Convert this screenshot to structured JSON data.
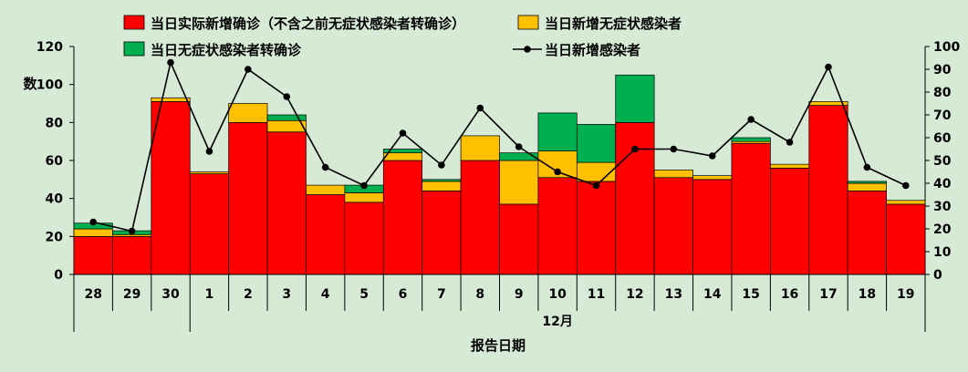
{
  "chart_data": {
    "type": "bar",
    "stacked": true,
    "categories": [
      "28",
      "29",
      "30",
      "1",
      "2",
      "3",
      "4",
      "5",
      "6",
      "7",
      "8",
      "9",
      "10",
      "11",
      "12",
      "13",
      "14",
      "15",
      "16",
      "17",
      "18",
      "19"
    ],
    "month_groups": [
      {
        "label": "",
        "start": 0,
        "end": 2
      },
      {
        "label": "12月",
        "start": 3,
        "end": 21
      }
    ],
    "xlabel": "报告日期",
    "ylabel": "数",
    "ylim": [
      0,
      120
    ],
    "yticks": [
      0,
      20,
      40,
      60,
      80,
      100,
      120
    ],
    "y2lim": [
      0,
      100
    ],
    "y2ticks": [
      0,
      10,
      20,
      30,
      40,
      50,
      60,
      70,
      80,
      90,
      100
    ],
    "grid": false,
    "legend_position": "top",
    "series": [
      {
        "name": "当日实际新增确诊（不含之前无症状感染者转确诊）",
        "kind": "bar",
        "axis": "left",
        "color": "#ff0000",
        "values": [
          20,
          20,
          91,
          53,
          80,
          75,
          42,
          38,
          60,
          44,
          60,
          37,
          51,
          49,
          80,
          51,
          50,
          69,
          56,
          89,
          44,
          37
        ]
      },
      {
        "name": "当日新增无症状感染者",
        "kind": "bar",
        "axis": "left",
        "color": "#ffc000",
        "values": [
          4,
          1,
          2,
          1,
          10,
          6,
          5,
          5,
          4,
          5,
          13,
          23,
          14,
          10,
          0,
          4,
          2,
          1,
          2,
          2,
          4,
          2
        ]
      },
      {
        "name": "当日无症状感染者转确诊",
        "kind": "bar",
        "axis": "left",
        "color": "#00b050",
        "values": [
          3,
          2,
          0,
          0,
          0,
          3,
          0,
          4,
          2,
          1,
          0,
          4,
          20,
          20,
          25,
          0,
          0,
          2,
          0,
          0,
          1,
          0
        ]
      },
      {
        "name": "当日新增感染者",
        "kind": "line",
        "axis": "right",
        "color": "#000000",
        "values": [
          23,
          19,
          93,
          54,
          90,
          78,
          47,
          39,
          62,
          48,
          73,
          56,
          45,
          39,
          55,
          55,
          52,
          68,
          58,
          91,
          47,
          39
        ]
      }
    ]
  }
}
